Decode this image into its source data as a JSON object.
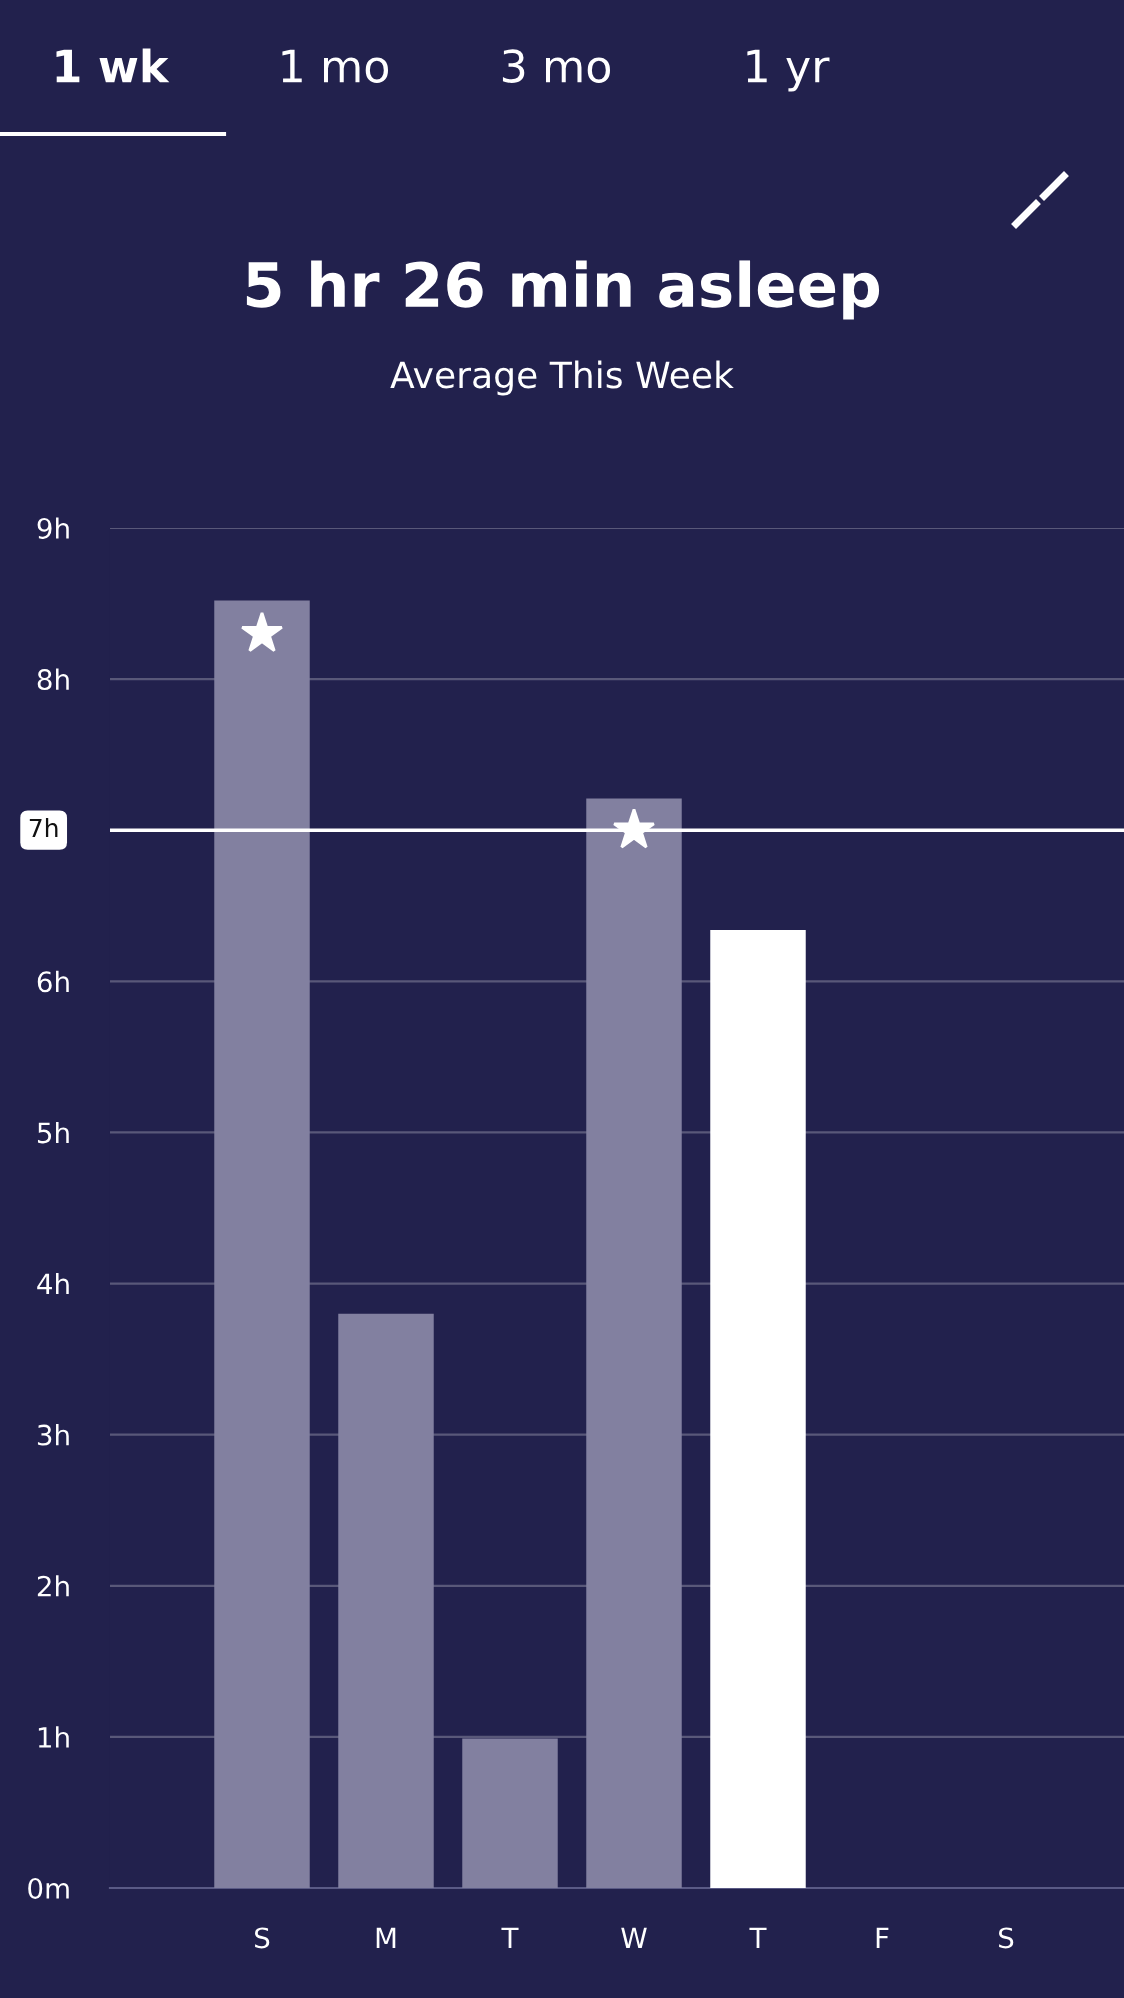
{
  "chart_data": {
    "type": "bar",
    "title": "5 hr 26 min asleep",
    "subtitle": "Average This Week",
    "annotations": [
      "1 wk",
      "1 mo",
      "3 mo",
      "1 yr"
    ],
    "categories": [
      "S",
      "M",
      "T",
      "W",
      "T",
      "F",
      "S"
    ],
    "values": [
      8.52,
      3.8,
      0.99,
      7.21,
      6.34,
      null,
      null
    ],
    "colors": [
      "#8280a0",
      "#8280a0",
      "#8280a0",
      "#8280a0",
      "#ffffff",
      "#8280a0",
      "#8280a0"
    ],
    "ylim": [
      0,
      9
    ],
    "yticks": [
      {
        "value": 0,
        "label": "0m"
      },
      {
        "value": 1,
        "label": "1h"
      },
      {
        "value": 2,
        "label": "2h"
      },
      {
        "value": 3,
        "label": "3h"
      },
      {
        "value": 4,
        "label": "4h"
      },
      {
        "value": 5,
        "label": "5h"
      },
      {
        "value": 6,
        "label": "6h"
      },
      {
        "value": 8,
        "label": "8h"
      },
      {
        "value": 9,
        "label": "9h"
      }
    ],
    "ref_lines": [
      {
        "axis": "y",
        "value": 7,
        "label": "7h",
        "color": "#ffffff"
      }
    ],
    "grid": "y"
  }
}
